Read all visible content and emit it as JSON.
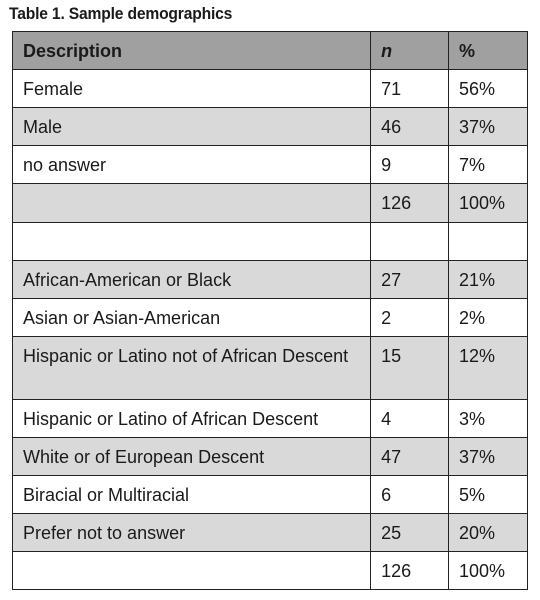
{
  "title": "Table 1. Sample demographics",
  "headers": {
    "description": "Description",
    "n": "n",
    "percent": "%"
  },
  "rows": [
    {
      "description": "Female",
      "n": "71",
      "percent": "56%"
    },
    {
      "description": "Male",
      "n": "46",
      "percent": "37%"
    },
    {
      "description": "no answer",
      "n": "9",
      "percent": "7%"
    },
    {
      "description": "",
      "n": "126",
      "percent": "100%"
    },
    {
      "description": "",
      "n": "",
      "percent": ""
    },
    {
      "description": "African-American or Black",
      "n": "27",
      "percent": "21%"
    },
    {
      "description": "Asian or Asian-American",
      "n": "2",
      "percent": "2%"
    },
    {
      "description": "Hispanic or Latino not of African Descent",
      "n": "15",
      "percent": "12%"
    },
    {
      "description": "Hispanic or Latino of African Descent",
      "n": "4",
      "percent": "3%"
    },
    {
      "description": "White or of European Descent",
      "n": "47",
      "percent": "37%"
    },
    {
      "description": "Biracial or Multiracial",
      "n": "6",
      "percent": "5%"
    },
    {
      "description": "Prefer not to answer",
      "n": "25",
      "percent": "20%"
    },
    {
      "description": "",
      "n": "126",
      "percent": "100%"
    }
  ],
  "colors": {
    "header_bg": "#a0a0a0",
    "shade_bg": "#d9d9d9",
    "border": "#222222"
  }
}
